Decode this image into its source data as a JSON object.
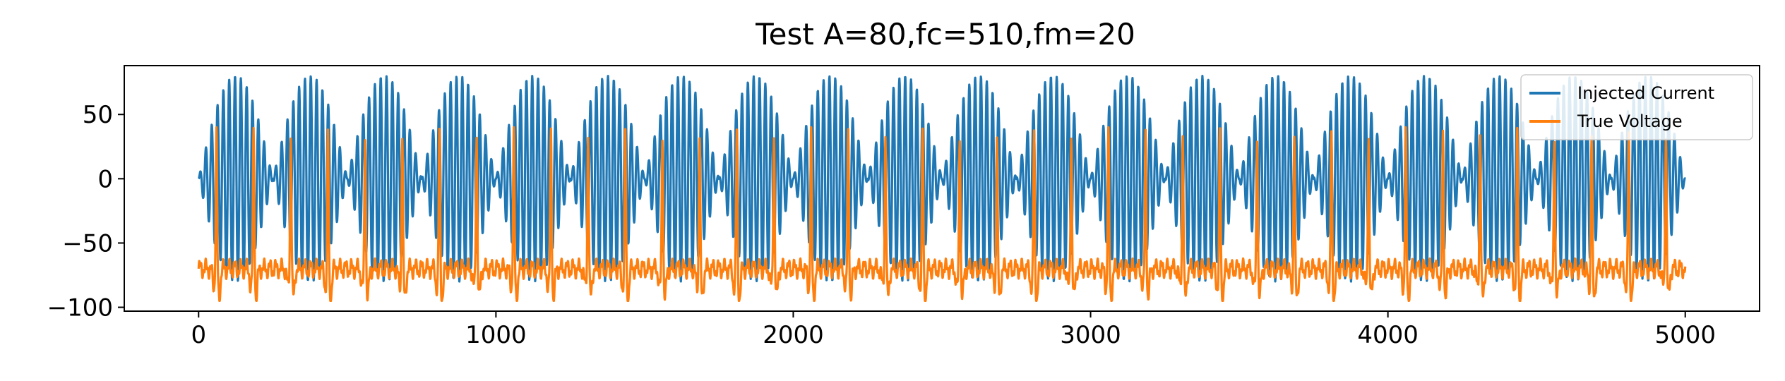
{
  "chart_data": {
    "type": "line",
    "title": "Test A=80,fc=510,fm=20",
    "xlabel": "",
    "ylabel": "",
    "xlim": [
      -250,
      5250
    ],
    "ylim": [
      -103,
      88
    ],
    "xticks": [
      0,
      1000,
      2000,
      3000,
      4000,
      5000
    ],
    "xtick_labels": [
      "0",
      "1000",
      "2000",
      "3000",
      "4000",
      "5000"
    ],
    "yticks": [
      50,
      0,
      -50,
      -100
    ],
    "ytick_labels": [
      "50",
      "0",
      "−50",
      "−100"
    ],
    "grid": false,
    "legend_position": "top-right",
    "series": [
      {
        "name": "Injected Current",
        "color": "#1f77b4",
        "description_of_shape": "AM carrier",
        "x_range": [
          0,
          5000
        ],
        "amplitude": 80,
        "carrier_period_samples": 19.6,
        "envelope_period_samples": 250,
        "y_range": [
          -80,
          80
        ]
      },
      {
        "name": "True Voltage",
        "color": "#ff7f0e",
        "x_range": [
          0,
          5000
        ],
        "baseline": -70,
        "y_range": [
          -95,
          40
        ],
        "spike_period_samples": 125,
        "first_spike_x": 60
      }
    ]
  }
}
